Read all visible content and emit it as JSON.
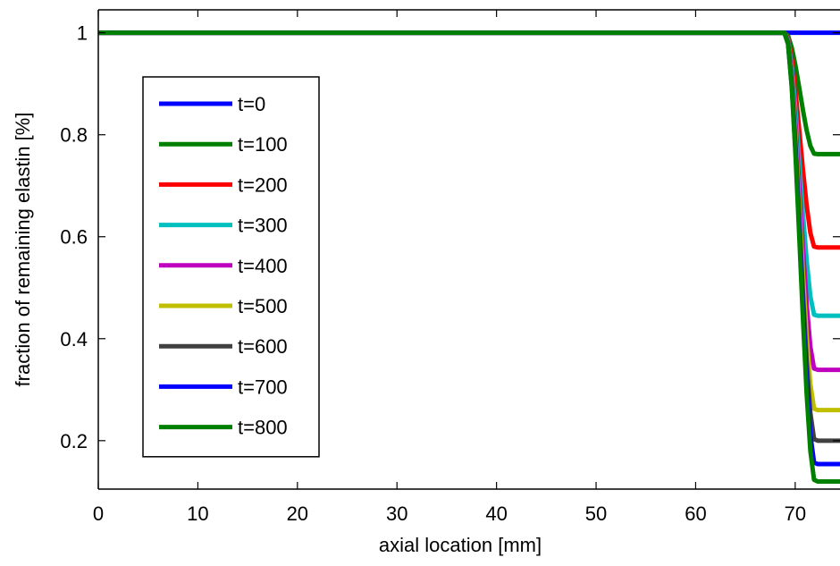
{
  "chart_data": {
    "type": "line",
    "xlabel": "axial location [mm]",
    "ylabel": "fraction of remaining elastin [%]",
    "xlim": [
      0,
      74.5
    ],
    "ylim": [
      0.105,
      1.045
    ],
    "xticks": [
      0,
      10,
      20,
      30,
      40,
      50,
      60,
      70
    ],
    "yticks": [
      0.2,
      0.4,
      0.6,
      0.8,
      1
    ],
    "xtick_labels": [
      "0",
      "10",
      "20",
      "30",
      "40",
      "50",
      "60",
      "70"
    ],
    "ytick_labels": [
      "0.2",
      "0.4",
      "0.6",
      "0.8",
      "1"
    ],
    "grid": false,
    "legend_position": "upper-left",
    "transition": {
      "start": 69,
      "end": 72
    },
    "series": [
      {
        "name": "t=0",
        "color": "#0000ff",
        "plateau": 1.0,
        "final": 1.0
      },
      {
        "name": "t=100",
        "color": "#008000",
        "plateau": 1.0,
        "final": 0.762
      },
      {
        "name": "t=200",
        "color": "#ff0000",
        "plateau": 1.0,
        "final": 0.579
      },
      {
        "name": "t=300",
        "color": "#00bfbf",
        "plateau": 1.0,
        "final": 0.445
      },
      {
        "name": "t=400",
        "color": "#bf00bf",
        "plateau": 1.0,
        "final": 0.339
      },
      {
        "name": "t=500",
        "color": "#bfbf00",
        "plateau": 1.0,
        "final": 0.26
      },
      {
        "name": "t=600",
        "color": "#404040",
        "plateau": 1.0,
        "final": 0.2
      },
      {
        "name": "t=700",
        "color": "#0000ff",
        "plateau": 1.0,
        "final": 0.154
      },
      {
        "name": "t=800",
        "color": "#008000",
        "plateau": 1.0,
        "final": 0.12
      }
    ]
  }
}
